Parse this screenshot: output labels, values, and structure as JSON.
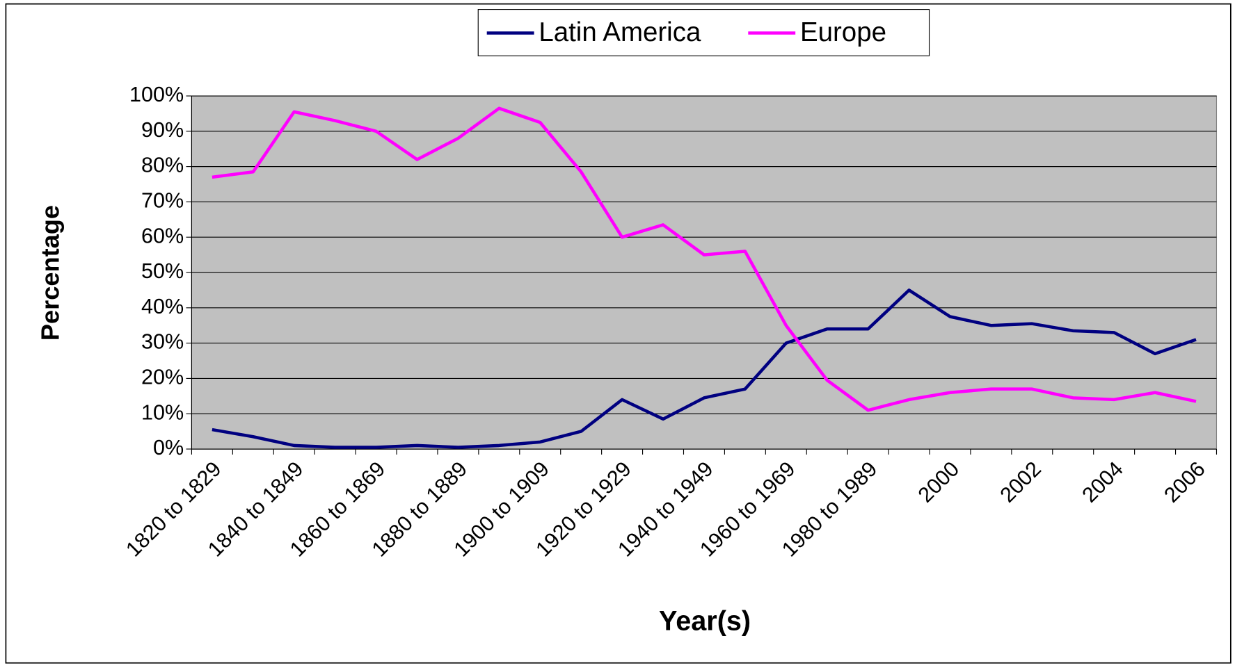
{
  "chart_data": {
    "type": "line",
    "x_label": "Year(s)",
    "y_label": "Percentage",
    "categories": [
      "1820 to 1829",
      null,
      "1840 to 1849",
      null,
      "1860 to 1869",
      null,
      "1880 to 1889",
      null,
      "1900 to 1909",
      null,
      "1920 to 1929",
      null,
      "1940 to 1949",
      null,
      "1960 to 1969",
      null,
      "1980 to 1989",
      null,
      "2000",
      null,
      "2002",
      null,
      "2004",
      null,
      "2006"
    ],
    "series": [
      {
        "name": "Latin America",
        "color": "#000080",
        "values": [
          5.5,
          3.5,
          1,
          0.5,
          0.5,
          1,
          0.5,
          1,
          2,
          5,
          14,
          8.5,
          14.5,
          17,
          30,
          34,
          34,
          45,
          37.5,
          35,
          35.5,
          33.5,
          33,
          27,
          31
        ]
      },
      {
        "name": "Europe",
        "color": "#ff00ff",
        "values": [
          77,
          78.5,
          95.5,
          93,
          90,
          82,
          88,
          96.5,
          92.5,
          78.5,
          60,
          63.5,
          55,
          56,
          35,
          19.5,
          11,
          14,
          16,
          17,
          17,
          14.5,
          14,
          16,
          13.5
        ]
      }
    ],
    "ylim": [
      0,
      100
    ],
    "yticks": [
      {
        "value": 0,
        "label": "0%"
      },
      {
        "value": 10,
        "label": "10%"
      },
      {
        "value": 20,
        "label": "20%"
      },
      {
        "value": 30,
        "label": "30%"
      },
      {
        "value": 40,
        "label": "40%"
      },
      {
        "value": 50,
        "label": "50%"
      },
      {
        "value": 60,
        "label": "60%"
      },
      {
        "value": 70,
        "label": "70%"
      },
      {
        "value": 80,
        "label": "80%"
      },
      {
        "value": 90,
        "label": "90%"
      },
      {
        "value": 100,
        "label": "100%"
      }
    ],
    "grid": true,
    "legend": "top"
  }
}
